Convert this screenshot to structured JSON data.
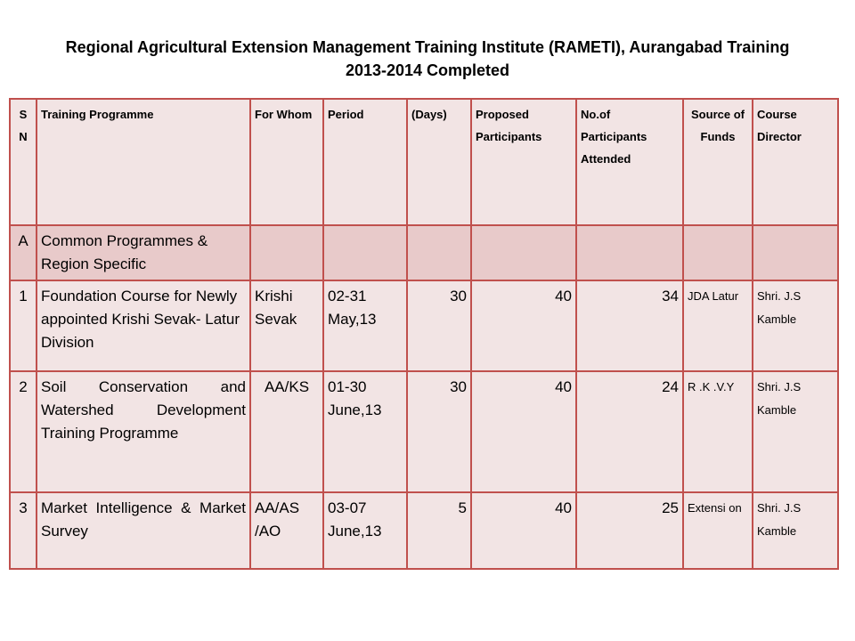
{
  "title_line1": "Regional Agricultural Extension Management Training Institute (RAMETI), Aurangabad Training",
  "title_line2": "2013-2014 Completed",
  "headers": {
    "sn": "S N",
    "programme": "Training Programme",
    "for_whom": "For Whom",
    "period": "Period",
    "days": "(Days)",
    "proposed": "Proposed Participants",
    "attended": "No.of Participants Attended",
    "funds": "Source of Funds",
    "director": "Course Director"
  },
  "section": {
    "sn": "A",
    "title": "Common Programmes & Region Specific"
  },
  "rows": [
    {
      "sn": "1",
      "programme": "Foundation Course for Newly appointed Krishi Sevak- Latur Division",
      "for_whom": "Krishi Sevak",
      "period": "02-31 May,13",
      "days": "30",
      "proposed": "40",
      "attended": "34",
      "funds": "JDA Latur",
      "director": "Shri. J.S Kamble"
    },
    {
      "sn": "2",
      "programme": "Soil Conservation and Watershed Development Training Programme",
      "for_whom": "AA/KS",
      "period": "01-30 June,13",
      "days": "30",
      "proposed": "40",
      "attended": "24",
      "funds": "R .K .V.Y",
      "director": "Shri. J.S Kamble"
    },
    {
      "sn": "3",
      "programme": "Market Intelligence & Market Survey",
      "for_whom": "AA/AS /AO",
      "period": "03-07 June,13",
      "days": "5",
      "proposed": "40",
      "attended": "25",
      "funds": "Extensi on",
      "director": "Shri. J.S Kamble"
    }
  ],
  "colors": {
    "border": "#c0504d",
    "cell": "#f2e4e4",
    "section_row": "#e8caca"
  }
}
